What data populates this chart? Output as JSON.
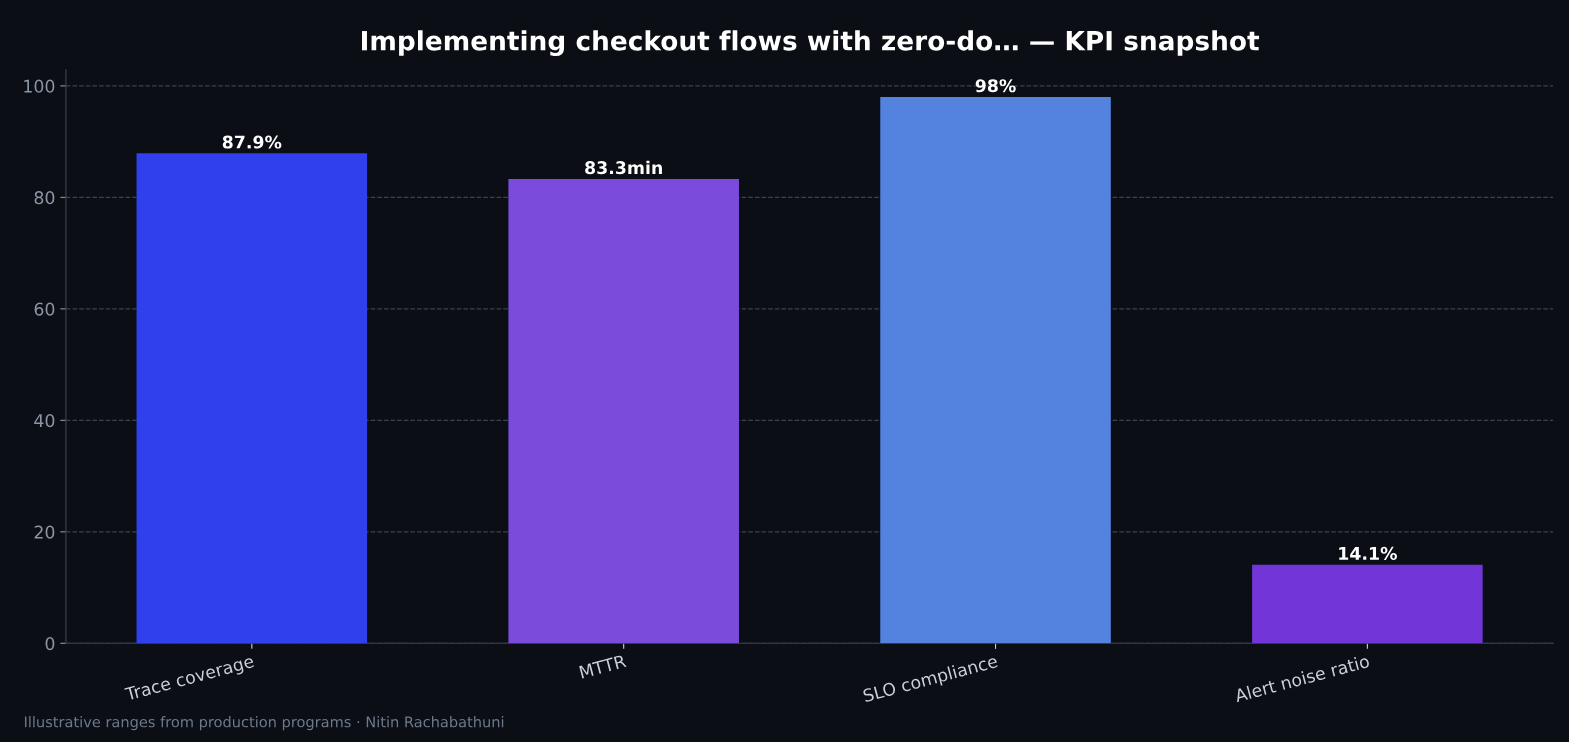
{
  "chart_data": {
    "type": "bar",
    "title": "Implementing checkout flows with zero-do… — KPI snapshot",
    "categories": [
      "Trace coverage",
      "MTTR",
      "SLO compliance",
      "Alert noise ratio"
    ],
    "values": [
      87.9,
      83.3,
      98,
      14.1
    ],
    "colors": [
      "#2f40ec",
      "#7b4cdc",
      "#5383de",
      "#7236d8"
    ],
    "value_labels": [
      "87.9%",
      "83.3min",
      "98%",
      "14.1%"
    ],
    "ylim": [
      0,
      102.9
    ],
    "yticks": [
      0,
      20,
      40,
      60,
      80,
      100
    ],
    "grid": "y",
    "annotations": [
      "Illustrative ranges from production programs · Nitin Rachabathuni"
    ]
  }
}
